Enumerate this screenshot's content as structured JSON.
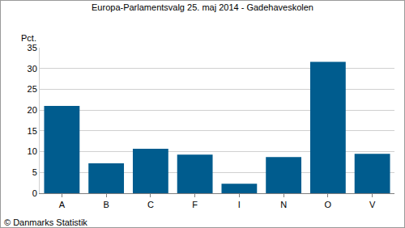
{
  "chart_data": {
    "type": "bar",
    "title": "Europa-Parlamentsvalg 25. maj 2014 - Gadehaveskolen",
    "ylabel": "Pct.",
    "source": "© Danmarks Statistik",
    "categories": [
      "A",
      "B",
      "C",
      "F",
      "I",
      "N",
      "O",
      "V"
    ],
    "values": [
      21.0,
      7.2,
      10.7,
      9.3,
      2.3,
      8.7,
      31.6,
      9.5
    ],
    "color": "#005c8e",
    "ylim": [
      0,
      35
    ],
    "yticks": [
      0,
      5,
      10,
      15,
      20,
      25,
      30,
      35
    ],
    "grid": true
  }
}
